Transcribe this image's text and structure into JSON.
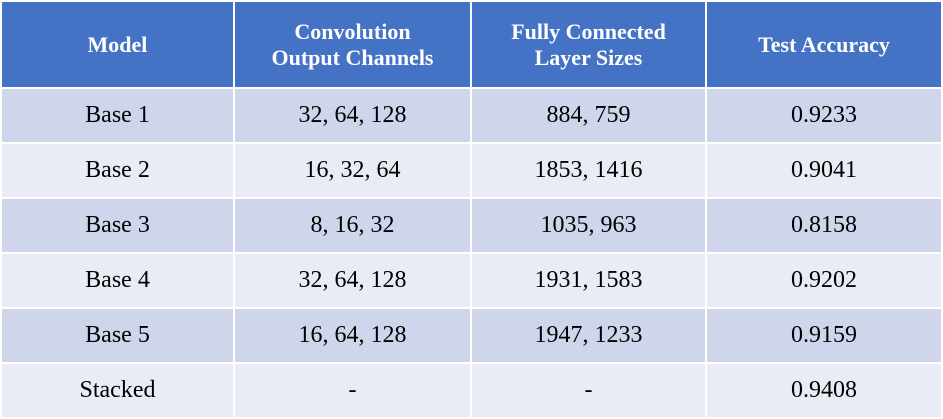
{
  "table": {
    "columns": [
      {
        "lines": [
          "Model"
        ]
      },
      {
        "lines": [
          "Convolution",
          "Output Channels"
        ]
      },
      {
        "lines": [
          "Fully Connected",
          "Layer Sizes"
        ]
      },
      {
        "lines": [
          "Test Accuracy"
        ]
      }
    ],
    "rows": [
      [
        "Base 1",
        "32, 64, 128",
        "884, 759",
        "0.9233"
      ],
      [
        "Base 2",
        "16, 32, 64",
        "1853, 1416",
        "0.9041"
      ],
      [
        "Base 3",
        "8, 16, 32",
        "1035, 963",
        "0.8158"
      ],
      [
        "Base 4",
        "32, 64, 128",
        "1931, 1583",
        "0.9202"
      ],
      [
        "Base 5",
        "16, 64, 128",
        "1947, 1233",
        "0.9159"
      ],
      [
        "Stacked",
        "-",
        "-",
        "0.9408"
      ]
    ],
    "colors": {
      "header_bg": "#4472c4",
      "header_text": "#ffffff",
      "row_odd_bg": "#cfd5ea",
      "row_even_bg": "#e9ebf5"
    }
  }
}
